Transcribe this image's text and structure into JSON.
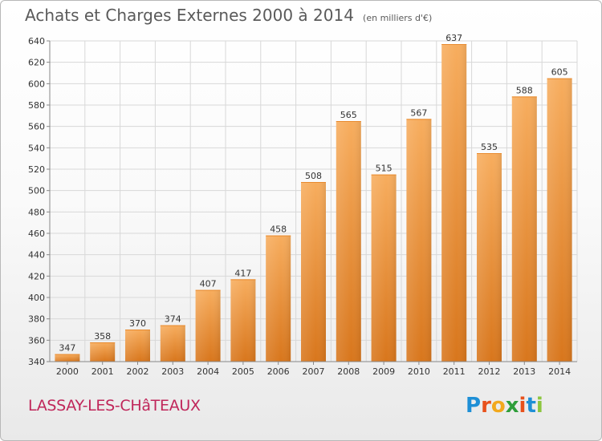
{
  "header": {
    "title": "Achats et Charges Externes 2000 à 2014",
    "subtitle": "(en milliers d'€)"
  },
  "footer": {
    "place_name": "LASSAY-LES-CHâTEAUX",
    "brand": "Proxiti"
  },
  "colors": {
    "bar_light": "#f5a550",
    "bar_dark": "#d97a22",
    "grid": "#d8d8d8",
    "text": "#333333",
    "place": "#c0265a"
  },
  "chart_data": {
    "type": "bar",
    "title": "Achats et Charges Externes 2000 à 2014",
    "subtitle": "(en milliers d'€)",
    "xlabel": "",
    "ylabel": "",
    "ylim": [
      340,
      640
    ],
    "yticks": [
      340,
      360,
      380,
      400,
      420,
      440,
      460,
      480,
      500,
      520,
      540,
      560,
      580,
      600,
      620,
      640
    ],
    "grid": true,
    "categories": [
      "2000",
      "2001",
      "2002",
      "2003",
      "2004",
      "2005",
      "2006",
      "2007",
      "2008",
      "2009",
      "2010",
      "2011",
      "2012",
      "2013",
      "2014"
    ],
    "values": [
      347,
      358,
      370,
      374,
      407,
      417,
      458,
      508,
      565,
      515,
      567,
      637,
      535,
      588,
      605
    ]
  }
}
